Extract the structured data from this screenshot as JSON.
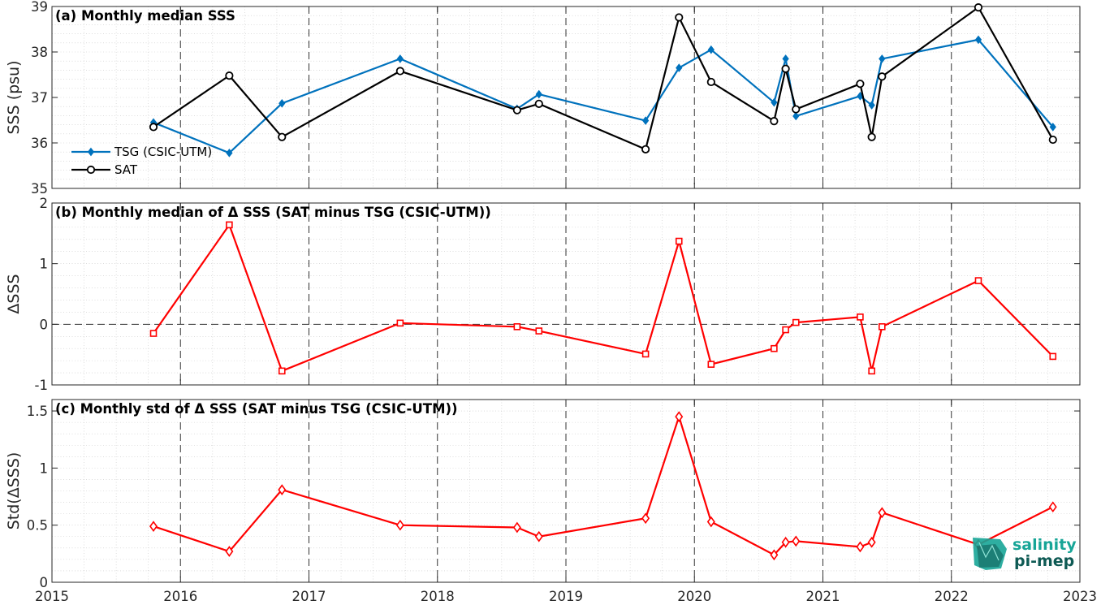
{
  "colors": {
    "tsg": "#0072BD",
    "sat": "#000000",
    "delta": "#FF0000",
    "logo_light": "#17a597",
    "logo_dark": "#0e5a54"
  },
  "logo": {
    "line1": "salinity",
    "line2": "pi-mep"
  },
  "chart_data": [
    {
      "type": "line",
      "title": "(a) Monthly median SSS",
      "ylabel": "SSS (psu)",
      "xlabel": "",
      "xlim": [
        2015,
        2023
      ],
      "ylim": [
        35,
        39
      ],
      "yticks": [
        35,
        36,
        37,
        38,
        39
      ],
      "grid": "on",
      "legend_position": "left",
      "series": [
        {
          "name": "TSG (CSIC-UTM)",
          "marker": "diamond",
          "x": [
            2015.79,
            2016.38,
            2016.79,
            2017.71,
            2018.62,
            2018.79,
            2019.62,
            2019.88,
            2020.13,
            2020.62,
            2020.71,
            2020.79,
            2021.29,
            2021.38,
            2021.46,
            2022.21,
            2022.79
          ],
          "y": [
            36.45,
            35.78,
            36.87,
            37.85,
            36.75,
            37.07,
            36.49,
            37.65,
            38.05,
            36.89,
            37.85,
            36.59,
            37.03,
            36.83,
            37.85,
            38.27,
            36.35
          ]
        },
        {
          "name": "SAT",
          "marker": "circle",
          "x": [
            2015.79,
            2016.38,
            2016.79,
            2017.71,
            2018.62,
            2018.79,
            2019.62,
            2019.88,
            2020.13,
            2020.62,
            2020.71,
            2020.79,
            2021.29,
            2021.38,
            2021.46,
            2022.21,
            2022.79
          ],
          "y": [
            36.35,
            37.48,
            36.13,
            37.58,
            36.72,
            36.86,
            35.86,
            38.76,
            37.34,
            36.48,
            37.63,
            36.74,
            37.3,
            36.13,
            37.46,
            38.98,
            36.07
          ]
        }
      ]
    },
    {
      "type": "line",
      "title": "(b) Monthly median of Δ SSS (SAT minus TSG (CSIC-UTM))",
      "ylabel": "ΔSSS",
      "xlabel": "",
      "xlim": [
        2015,
        2023
      ],
      "ylim": [
        -1,
        2
      ],
      "yticks": [
        -1,
        0,
        1,
        2
      ],
      "grid": "on",
      "zero_line": true,
      "series": [
        {
          "marker": "square",
          "x": [
            2015.79,
            2016.38,
            2016.79,
            2017.71,
            2018.62,
            2018.79,
            2019.62,
            2019.88,
            2020.13,
            2020.62,
            2020.71,
            2020.79,
            2021.29,
            2021.38,
            2021.46,
            2022.21,
            2022.79
          ],
          "y": [
            -0.15,
            1.64,
            -0.77,
            0.02,
            -0.04,
            -0.11,
            -0.49,
            1.37,
            -0.66,
            -0.4,
            -0.09,
            0.03,
            0.12,
            -0.77,
            -0.04,
            0.72,
            -0.53
          ]
        }
      ]
    },
    {
      "type": "line",
      "title": "(c) Monthly std of Δ SSS (SAT minus TSG (CSIC-UTM))",
      "ylabel": "Std(ΔSSS)",
      "xlabel": "",
      "xlim": [
        2015,
        2023
      ],
      "ylim": [
        0,
        1.6
      ],
      "yticks": [
        0,
        0.5,
        1,
        1.5
      ],
      "xticks": [
        2015,
        2016,
        2017,
        2018,
        2019,
        2020,
        2021,
        2022,
        2023
      ],
      "grid": "on",
      "series": [
        {
          "marker": "diamond",
          "x": [
            2015.79,
            2016.38,
            2016.79,
            2017.71,
            2018.62,
            2018.79,
            2019.62,
            2019.88,
            2020.13,
            2020.62,
            2020.71,
            2020.79,
            2021.29,
            2021.38,
            2021.46,
            2022.21,
            2022.79
          ],
          "y": [
            0.49,
            0.27,
            0.81,
            0.5,
            0.48,
            0.4,
            0.56,
            1.45,
            0.53,
            0.24,
            0.35,
            0.36,
            0.31,
            0.35,
            0.61,
            0.33,
            0.66
          ]
        }
      ]
    }
  ]
}
